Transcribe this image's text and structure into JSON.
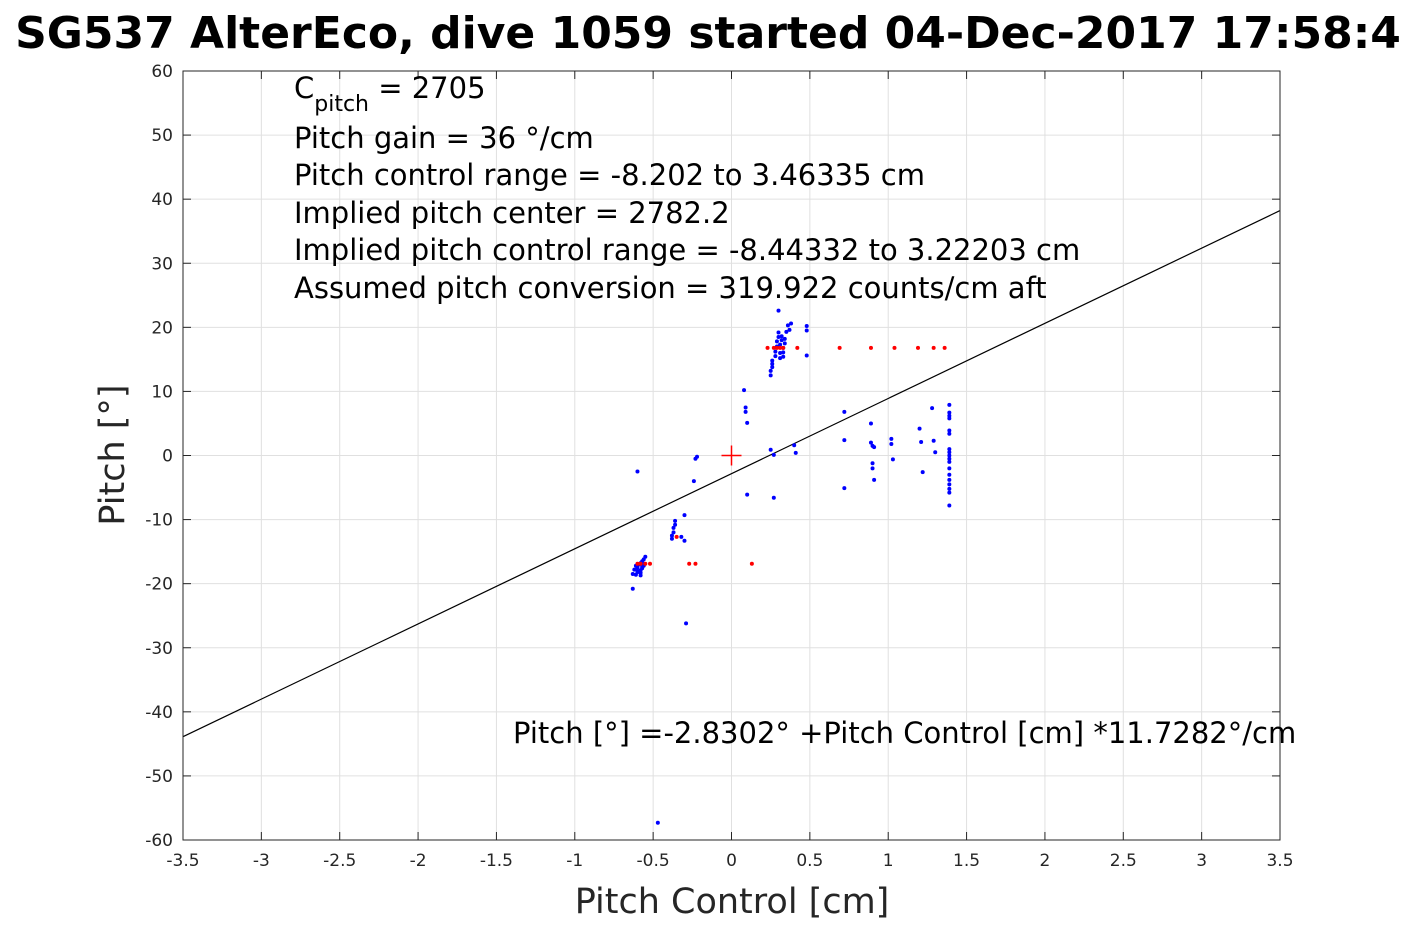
{
  "chart_data": {
    "type": "scatter",
    "title": "SG537 AlterEco, dive 1059 started 04-Dec-2017 17:58:4",
    "xlabel": "Pitch Control [cm]",
    "ylabel": "Pitch [°]",
    "xlim": [
      -3.5,
      3.5
    ],
    "ylim": [
      -60,
      60
    ],
    "xticks": [
      -3.5,
      -3,
      -2.5,
      -2,
      -1.5,
      -1,
      -0.5,
      0,
      0.5,
      1,
      1.5,
      2,
      2.5,
      3,
      3.5
    ],
    "yticks": [
      -60,
      -50,
      -40,
      -30,
      -20,
      -10,
      0,
      10,
      20,
      30,
      40,
      50,
      60
    ],
    "grid": true,
    "colors": {
      "observed": "#0000ff",
      "commanded": "#ff0000",
      "fit": "#000000",
      "center": "#ff0000"
    },
    "annotations": {
      "cpitch_main": "C",
      "cpitch_sub": "pitch",
      "cpitch_value": " = 2705",
      "lines": [
        "Pitch gain = 36 °/cm",
        "Pitch control range = -8.202 to 3.46335 cm",
        "Implied pitch center = 2782.2",
        "Implied pitch control range = -8.44332 to 3.22203 cm",
        "Assumed pitch conversion = 319.922 counts/cm aft"
      ],
      "fit_equation": "Pitch [°] =-2.8302° +Pitch Control [cm] *11.7282°/cm"
    },
    "fit_line": {
      "intercept": -2.8302,
      "slope": 11.7282
    },
    "center_marker": [
      0,
      0
    ],
    "series": [
      {
        "role": "observed",
        "x": [
          -0.63,
          -0.62,
          -0.61,
          -0.6,
          -0.6,
          -0.59,
          -0.58,
          -0.58,
          -0.57,
          -0.57,
          -0.56,
          -0.56,
          -0.55,
          -0.63,
          -0.61,
          -0.6,
          -0.58,
          -0.57,
          -0.56,
          -0.58,
          -0.6,
          -0.47,
          -0.38,
          -0.38,
          -0.37,
          -0.37,
          -0.36,
          -0.36,
          -0.32,
          -0.3,
          -0.3,
          -0.29,
          -0.24,
          -0.23,
          -0.22,
          0.08,
          0.09,
          0.09,
          0.1,
          0.1,
          0.25,
          0.25,
          0.25,
          0.26,
          0.26,
          0.26,
          0.27,
          0.27,
          0.28,
          0.28,
          0.29,
          0.29,
          0.3,
          0.3,
          0.3,
          0.31,
          0.31,
          0.31,
          0.32,
          0.32,
          0.33,
          0.33,
          0.33,
          0.34,
          0.34,
          0.35,
          0.36,
          0.37,
          0.38,
          0.4,
          0.41,
          0.48,
          0.48,
          0.48,
          0.72,
          0.72,
          0.72,
          0.89,
          0.89,
          0.9,
          0.9,
          0.9,
          0.91,
          0.91,
          1.02,
          1.02,
          1.03,
          1.2,
          1.21,
          1.22,
          1.28,
          1.29,
          1.3,
          1.39,
          1.39,
          1.39,
          1.39,
          1.39,
          1.39,
          1.39,
          1.39,
          1.39,
          1.39,
          1.39,
          1.39,
          1.39,
          1.39,
          1.39,
          1.39,
          1.39,
          1.39
        ],
        "y": [
          -18.5,
          -17.8,
          -17.2,
          -18.0,
          -17.5,
          -17.0,
          -18.3,
          -16.8,
          -17.6,
          -16.5,
          -17.2,
          -16.2,
          -15.8,
          -20.8,
          -18.6,
          -18.2,
          -17.9,
          -17.4,
          -16.9,
          -18.7,
          -2.5,
          -57.3,
          -13.0,
          -12.5,
          -12.0,
          -11.3,
          -10.8,
          -10.2,
          -12.7,
          -13.3,
          -9.3,
          -26.2,
          -4.0,
          -0.5,
          -0.2,
          10.2,
          7.5,
          6.8,
          5.1,
          -6.1,
          0.9,
          12.5,
          13.2,
          13.8,
          14.3,
          14.8,
          0.1,
          -6.6,
          15.5,
          16.2,
          17.0,
          17.8,
          18.5,
          19.2,
          22.6,
          15.2,
          16.0,
          17.3,
          18.0,
          18.6,
          15.4,
          16.1,
          16.8,
          17.5,
          18.2,
          19.3,
          20.3,
          19.6,
          20.6,
          1.6,
          0.4,
          20.2,
          19.5,
          15.6,
          6.8,
          2.4,
          -5.1,
          5.0,
          2.0,
          1.5,
          -1.2,
          -2.0,
          -3.8,
          1.3,
          2.6,
          1.8,
          -0.6,
          4.2,
          2.1,
          -2.6,
          7.4,
          2.3,
          0.5,
          7.9,
          6.7,
          6.2,
          5.8,
          3.9,
          3.4,
          1.0,
          0.5,
          0.0,
          -0.5,
          -1.0,
          -2.0,
          -3.0,
          -3.8,
          -4.5,
          -5.2,
          -5.8,
          -7.8
        ]
      },
      {
        "role": "commanded",
        "x": [
          -0.6,
          -0.58,
          -0.55,
          -0.52,
          -0.35,
          -0.27,
          -0.23,
          0.13,
          0.23,
          0.27,
          0.29,
          0.31,
          0.33,
          0.42,
          0.69,
          0.89,
          1.04,
          1.19,
          1.29,
          1.36
        ],
        "y": [
          -16.9,
          -16.9,
          -16.9,
          -16.9,
          -12.7,
          -16.9,
          -16.9,
          -16.9,
          16.8,
          16.8,
          16.8,
          16.8,
          16.8,
          16.8,
          16.8,
          16.8,
          16.8,
          16.8,
          16.8,
          16.8
        ]
      }
    ]
  }
}
